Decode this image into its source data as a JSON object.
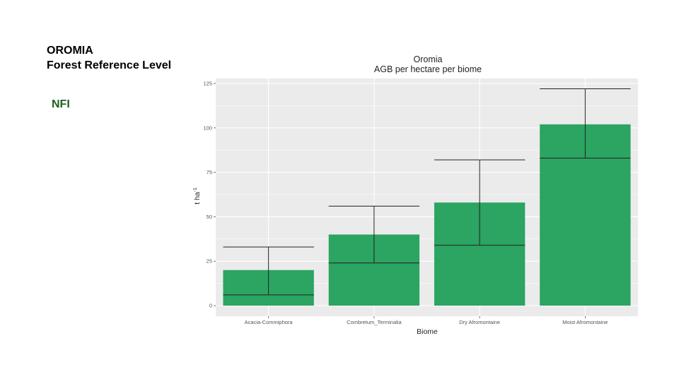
{
  "slide": {
    "title_line1": "OROMIA",
    "title_line2": "Forest Reference Level",
    "nfi_label": "NFI"
  },
  "colors": {
    "bar": "#2ca462",
    "panel": "#ebebeb",
    "grid": "#ffffff",
    "label_green": "#1e5f1e"
  },
  "chart_data": {
    "type": "bar",
    "title": "Oromia",
    "subtitle": "AGB per hectare per biome",
    "xlabel": "Biome",
    "ylabel": "t ha",
    "ylabel_superscript": "-1",
    "categories": [
      "Acacia-Commiphora",
      "Combretum_Terminalia",
      "Dry Afromontaine",
      "Moist Afromontaine"
    ],
    "values": [
      20,
      40,
      58,
      102
    ],
    "error_low": [
      6,
      24,
      34,
      83
    ],
    "error_high": [
      33,
      56,
      82,
      122
    ],
    "ylim": [
      0,
      127
    ],
    "yticks": [
      "0",
      "25",
      "50",
      "75",
      "100",
      "125"
    ],
    "grid": true
  }
}
